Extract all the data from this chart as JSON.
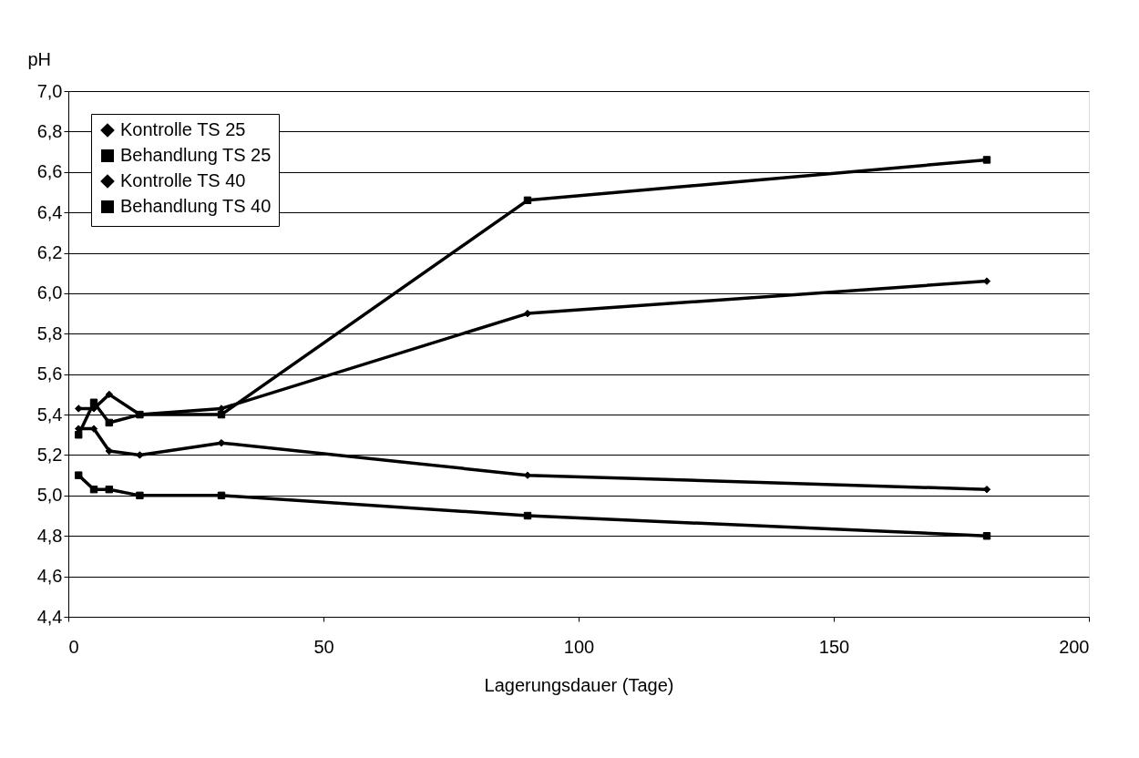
{
  "chart_data": {
    "type": "line",
    "xlabel": "Lagerungsdauer (Tage)",
    "ylabel": "pH",
    "x": [
      2,
      5,
      8,
      14,
      30,
      90,
      180
    ],
    "series": [
      {
        "name": "Kontrolle TS 25",
        "color": "#000000",
        "marker": "diamond",
        "values": [
          5.43,
          5.43,
          5.5,
          5.4,
          5.43,
          5.9,
          6.06
        ]
      },
      {
        "name": "Behandlung TS 25",
        "color": "#000000",
        "marker": "square",
        "values": [
          5.3,
          5.46,
          5.36,
          5.4,
          5.4,
          6.46,
          6.66
        ]
      },
      {
        "name": "Kontrolle TS 40",
        "color": "#000000",
        "marker": "diamond",
        "values": [
          5.33,
          5.33,
          5.22,
          5.2,
          5.26,
          5.1,
          5.03
        ]
      },
      {
        "name": "Behandlung TS 40",
        "color": "#000000",
        "marker": "square",
        "values": [
          5.1,
          5.03,
          5.03,
          5.0,
          5.0,
          4.9,
          4.8
        ]
      }
    ],
    "xlim": [
      0,
      200
    ],
    "xticks": [
      0,
      50,
      100,
      150,
      200
    ],
    "ylim": [
      4.4,
      7.0
    ],
    "yticks": [
      {
        "value": 4.4,
        "label": "4,4"
      },
      {
        "value": 4.6,
        "label": "4,6"
      },
      {
        "value": 4.8,
        "label": "4,8"
      },
      {
        "value": 5.0,
        "label": "5,0"
      },
      {
        "value": 5.2,
        "label": "5,2"
      },
      {
        "value": 5.4,
        "label": "5,4"
      },
      {
        "value": 5.6,
        "label": "5,6"
      },
      {
        "value": 5.8,
        "label": "5,8"
      },
      {
        "value": 6.0,
        "label": "6,0"
      },
      {
        "value": 6.2,
        "label": "6,2"
      },
      {
        "value": 6.4,
        "label": "6,4"
      },
      {
        "value": 6.6,
        "label": "6,6"
      },
      {
        "value": 6.8,
        "label": "6,8"
      },
      {
        "value": 7.0,
        "label": "7,0"
      }
    ],
    "grid": "y",
    "legend": "top left",
    "line_style": "solid"
  }
}
